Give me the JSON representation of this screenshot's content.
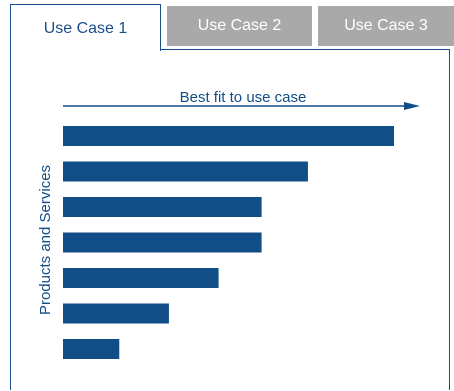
{
  "tabs": [
    {
      "label": "Use Case 1",
      "active": true
    },
    {
      "label": "Use Case 2",
      "active": false
    },
    {
      "label": "Use Case 3",
      "active": false
    }
  ],
  "colors": {
    "accent": "#114d87",
    "inactive_tab": "#a9a9a9"
  },
  "chart_data": {
    "type": "bar",
    "orientation": "horizontal",
    "xlabel": "Best fit to use case",
    "ylabel": "Products and Services",
    "categories": [
      "",
      "",
      "",
      "",
      "",
      "",
      ""
    ],
    "values": [
      100,
      74,
      60,
      60,
      47,
      32,
      17
    ],
    "xlim": [
      0,
      100
    ],
    "grid": false
  }
}
